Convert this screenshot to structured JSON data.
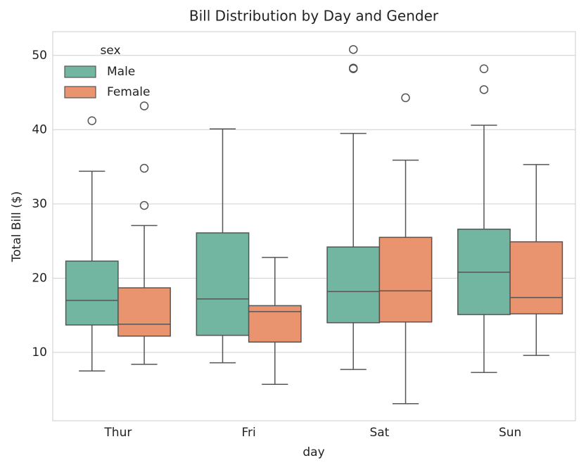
{
  "chart_data": {
    "type": "box",
    "title": "Bill Distribution by Day and Gender",
    "x_label": "day",
    "y_label": "Total Bill ($)",
    "categories": [
      "Thur",
      "Fri",
      "Sat",
      "Sun"
    ],
    "legend_title": "sex",
    "legend": "upper left",
    "grid": true,
    "ylim": [
      0.8,
      53.2
    ],
    "yticks": [
      10,
      20,
      30,
      40,
      50
    ],
    "series": [
      {
        "name": "Male",
        "color": "#72b6a1",
        "boxes": [
          {
            "whislo": 7.5,
            "q1": 13.7,
            "med": 17.0,
            "q3": 22.3,
            "whishi": 34.4,
            "fliers": [
              41.2
            ]
          },
          {
            "whislo": 8.6,
            "q1": 12.3,
            "med": 17.2,
            "q3": 26.1,
            "whishi": 40.1,
            "fliers": []
          },
          {
            "whislo": 7.7,
            "q1": 14.0,
            "med": 18.2,
            "q3": 24.2,
            "whishi": 39.5,
            "fliers": [
              50.8,
              48.2,
              48.3
            ]
          },
          {
            "whislo": 7.3,
            "q1": 15.1,
            "med": 20.8,
            "q3": 26.6,
            "whishi": 40.6,
            "fliers": [
              48.2,
              45.4
            ]
          }
        ]
      },
      {
        "name": "Female",
        "color": "#e9936f",
        "boxes": [
          {
            "whislo": 8.4,
            "q1": 12.2,
            "med": 13.8,
            "q3": 18.7,
            "whishi": 27.1,
            "fliers": [
              43.2,
              34.8,
              29.8
            ]
          },
          {
            "whislo": 5.7,
            "q1": 11.4,
            "med": 15.5,
            "q3": 16.3,
            "whishi": 22.8,
            "fliers": []
          },
          {
            "whislo": 3.1,
            "q1": 14.1,
            "med": 18.3,
            "q3": 25.5,
            "whishi": 35.9,
            "fliers": [
              44.3
            ]
          },
          {
            "whislo": 9.6,
            "q1": 15.2,
            "med": 17.4,
            "q3": 24.9,
            "whishi": 35.3,
            "fliers": []
          }
        ]
      }
    ]
  }
}
